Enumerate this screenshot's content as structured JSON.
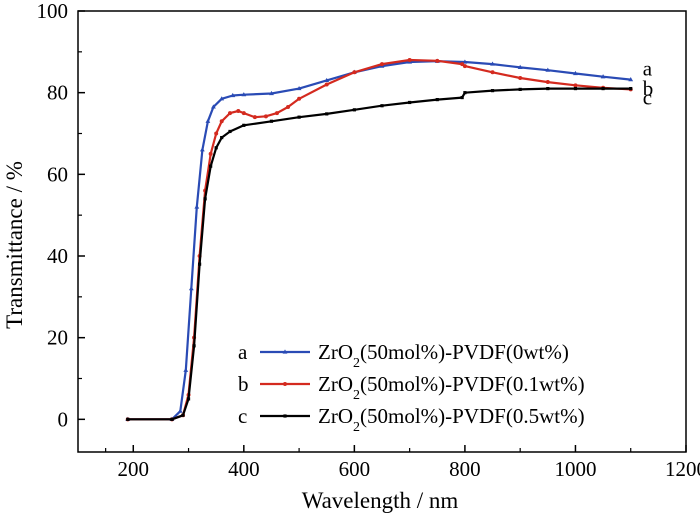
{
  "chart_data": {
    "type": "line",
    "xlabel": "Wavelength / nm",
    "ylabel": "Transmittance / %",
    "xlim": [
      100,
      1200
    ],
    "ylim": [
      -8,
      100
    ],
    "xticks": [
      200,
      400,
      600,
      800,
      1000,
      1200
    ],
    "yticks": [
      0,
      20,
      40,
      60,
      80,
      100
    ],
    "x_tick_labels": [
      "200",
      "400",
      "600",
      "800",
      "1000",
      "1200"
    ],
    "y_tick_labels": [
      "0",
      "20",
      "40",
      "60",
      "80",
      "100"
    ],
    "grid": false,
    "legend_position": "bottom-right",
    "series": [
      {
        "key": "a",
        "legend_parts": [
          "ZrO",
          "2",
          "(50mol%)-PVDF(0wt%)"
        ],
        "color": "#2a4bb5",
        "marker": "triangle",
        "end_label": "a",
        "x": [
          190,
          270,
          285,
          295,
          305,
          315,
          325,
          335,
          345,
          360,
          380,
          400,
          450,
          500,
          550,
          600,
          650,
          700,
          750,
          800,
          850,
          900,
          950,
          1000,
          1050,
          1100
        ],
        "y": [
          0,
          0,
          2,
          12,
          32,
          52,
          66,
          73,
          76.5,
          78.5,
          79.3,
          79.5,
          79.8,
          81,
          83,
          85,
          86.5,
          87.5,
          87.7,
          87.5,
          87,
          86.2,
          85.5,
          84.7,
          83.9,
          83.2
        ]
      },
      {
        "key": "b",
        "legend_parts": [
          "ZrO",
          "2",
          "(50mol%)-PVDF(0.1wt%)"
        ],
        "color": "#d42a1f",
        "marker": "circle",
        "end_label": "b",
        "x": [
          190,
          270,
          290,
          300,
          310,
          320,
          330,
          340,
          350,
          360,
          375,
          390,
          400,
          420,
          440,
          460,
          480,
          500,
          550,
          600,
          650,
          700,
          750,
          795,
          800,
          850,
          900,
          950,
          1000,
          1050,
          1100
        ],
        "y": [
          0,
          0,
          1,
          6,
          20,
          40,
          56,
          65,
          70,
          73,
          75,
          75.5,
          75,
          74,
          74.2,
          75,
          76.5,
          78.5,
          82,
          85,
          87,
          88,
          87.8,
          87,
          86.5,
          85,
          83.6,
          82.6,
          81.8,
          81.2,
          80.8
        ]
      },
      {
        "key": "c",
        "legend_parts": [
          "ZrO",
          "2",
          "(50mol%)-PVDF(0.5wt%)"
        ],
        "color": "#000000",
        "marker": "square",
        "end_label": "c",
        "x": [
          190,
          270,
          290,
          300,
          310,
          320,
          330,
          340,
          350,
          360,
          375,
          400,
          450,
          500,
          550,
          600,
          650,
          700,
          750,
          795,
          800,
          850,
          900,
          950,
          1000,
          1050,
          1100
        ],
        "y": [
          0,
          0,
          1,
          5,
          18,
          38,
          54,
          62,
          66.5,
          69,
          70.5,
          72,
          73,
          74,
          74.8,
          75.8,
          76.8,
          77.6,
          78.3,
          78.8,
          80,
          80.5,
          80.8,
          81,
          81,
          81,
          81
        ]
      }
    ]
  }
}
